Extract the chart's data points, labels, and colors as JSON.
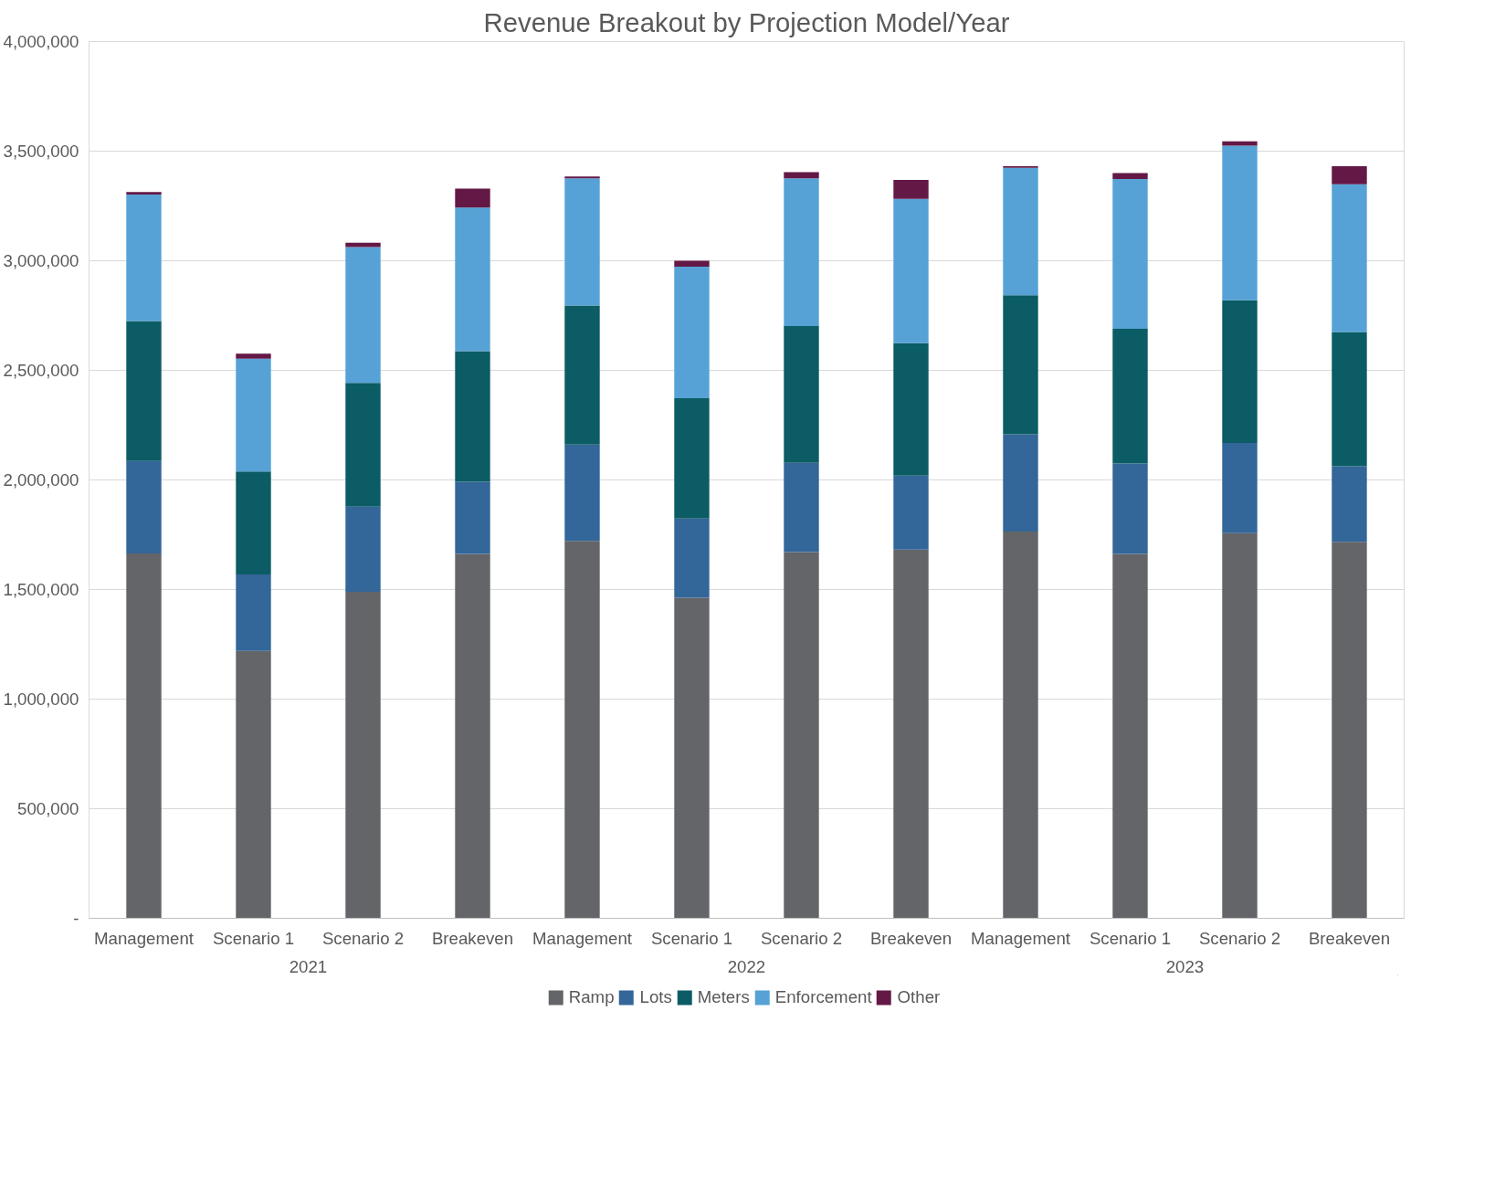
{
  "chart_data": {
    "type": "bar",
    "title": "Revenue Breakout by Projection Model/Year",
    "stacked": true,
    "categories": [
      "Management",
      "Scenario 1",
      "Scenario 2",
      "Breakeven",
      "Management",
      "Scenario 1",
      "Scenario 2",
      "Breakeven",
      "Management",
      "Scenario 1",
      "Scenario 2",
      "Breakeven"
    ],
    "annotations": [
      "2021",
      "2022",
      "2023"
    ],
    "series": [
      {
        "name": "Ramp",
        "color": "#636569",
        "values": [
          1665000,
          1220000,
          1490000,
          1663000,
          1722000,
          1463000,
          1671000,
          1682000,
          1765000,
          1663000,
          1757000,
          1718000
        ]
      },
      {
        "name": "Lots",
        "color": "#336699",
        "values": [
          421000,
          349000,
          388000,
          329000,
          439000,
          361000,
          407000,
          338000,
          443000,
          412000,
          412000,
          345000
        ]
      },
      {
        "name": "Meters",
        "color": "#0b5c64",
        "values": [
          639000,
          470000,
          565000,
          596000,
          635000,
          549000,
          624000,
          604000,
          635000,
          615000,
          651000,
          612000
        ]
      },
      {
        "name": "Enforcement",
        "color": "#56a2d6",
        "values": [
          577000,
          514000,
          620000,
          655000,
          580000,
          600000,
          674000,
          658000,
          581000,
          683000,
          705000,
          674000
        ]
      },
      {
        "name": "Other",
        "color": "#641846",
        "values": [
          12000,
          23000,
          19000,
          86000,
          8000,
          27000,
          28000,
          87000,
          7000,
          27000,
          20000,
          82000
        ]
      }
    ],
    "ylim": [
      0,
      4000000
    ],
    "yticks": [
      {
        "value": 0,
        "label": "-"
      },
      {
        "value": 500000,
        "label": "500,000"
      },
      {
        "value": 1000000,
        "label": "1,000,000"
      },
      {
        "value": 1500000,
        "label": "1,500,000"
      },
      {
        "value": 2000000,
        "label": "2,000,000"
      },
      {
        "value": 2500000,
        "label": "2,500,000"
      },
      {
        "value": 3000000,
        "label": "3,000,000"
      },
      {
        "value": 3500000,
        "label": "3,500,000"
      },
      {
        "value": 4000000,
        "label": "4,000,000"
      }
    ],
    "grid": "y",
    "legend": "bottom"
  }
}
